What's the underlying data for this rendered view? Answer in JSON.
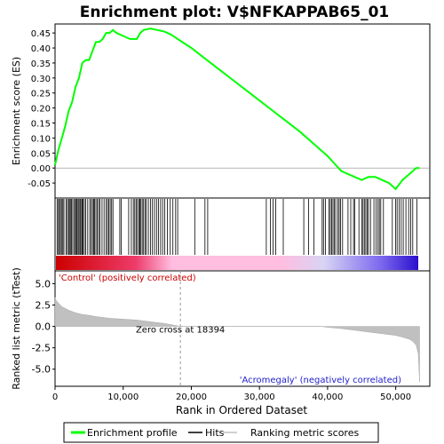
{
  "chart_data": {
    "type": "line",
    "title": "Enrichment plot: V$NFKAPPAB65_01",
    "es_panel": {
      "ylabel": "Enrichment score (ES)",
      "ylim": [
        -0.1,
        0.48
      ],
      "yticks": [
        "0.45",
        "0.40",
        "0.35",
        "0.30",
        "0.25",
        "0.20",
        "0.15",
        "0.10",
        "0.05",
        "0.00",
        "-0.05"
      ],
      "ytick_values": [
        0.45,
        0.4,
        0.35,
        0.3,
        0.25,
        0.2,
        0.15,
        0.1,
        0.05,
        0.0,
        -0.05
      ],
      "series": [
        {
          "name": "Enrichment profile",
          "color": "#00ff00",
          "x": [
            0,
            500,
            1000,
            1500,
            2000,
            2500,
            3000,
            3500,
            4000,
            4500,
            5000,
            5500,
            6000,
            6500,
            7000,
            7500,
            8000,
            8500,
            9000,
            10000,
            11000,
            12000,
            12500,
            13000,
            14000,
            15000,
            16000,
            17000,
            18000,
            19000,
            20000,
            22000,
            24000,
            26000,
            28000,
            30000,
            32000,
            34000,
            36000,
            38000,
            40000,
            42000,
            43000,
            44000,
            45000,
            46000,
            47000,
            48000,
            49000,
            50000,
            51000,
            52000,
            53000,
            53500
          ],
          "y": [
            0.01,
            0.06,
            0.1,
            0.14,
            0.19,
            0.22,
            0.27,
            0.3,
            0.35,
            0.36,
            0.36,
            0.39,
            0.42,
            0.42,
            0.43,
            0.45,
            0.45,
            0.46,
            0.45,
            0.44,
            0.43,
            0.43,
            0.45,
            0.46,
            0.465,
            0.46,
            0.455,
            0.445,
            0.43,
            0.415,
            0.4,
            0.365,
            0.33,
            0.295,
            0.26,
            0.225,
            0.19,
            0.155,
            0.12,
            0.08,
            0.04,
            -0.01,
            -0.02,
            -0.03,
            -0.04,
            -0.03,
            -0.03,
            -0.04,
            -0.05,
            -0.07,
            -0.04,
            -0.02,
            0.0,
            0.0
          ]
        }
      ]
    },
    "rank_panel": {
      "xlabel": "Rank in Ordered Dataset",
      "ylabel": "Ranked list metric (tTest)",
      "xlim": [
        0,
        55000
      ],
      "xticks": [
        "0",
        "10,000",
        "20,000",
        "30,000",
        "40,000",
        "50,000"
      ],
      "xtick_values": [
        0,
        10000,
        20000,
        30000,
        40000,
        50000
      ],
      "ylim": [
        -7,
        6.5
      ],
      "yticks": [
        "5.0",
        "2.5",
        "0.0",
        "-2.5",
        "-5.0"
      ],
      "ytick_values": [
        5.0,
        2.5,
        0.0,
        -2.5,
        -5.0
      ],
      "zero_cross_label": "Zero cross at 18394",
      "zero_cross": 18394,
      "positive_label": "'Control' (positively correlated)",
      "negative_label": "'Acromegaly' (negatively correlated)",
      "metric_profile": {
        "x": [
          0,
          200,
          1000,
          2000,
          3000,
          4000,
          5000,
          6000,
          8000,
          10000,
          12000,
          14000,
          16000,
          17000,
          18394,
          20000,
          25000,
          30000,
          35000,
          39000,
          40000,
          42000,
          44000,
          46000,
          48000,
          50000,
          51000,
          52000,
          52500,
          53000,
          53300,
          53500
        ],
        "y": [
          3.4,
          3.0,
          2.3,
          1.9,
          1.6,
          1.4,
          1.3,
          1.15,
          0.95,
          0.85,
          0.75,
          0.55,
          0.35,
          0.22,
          0.0,
          0.0,
          0.0,
          0.0,
          0.0,
          0.0,
          -0.1,
          -0.25,
          -0.45,
          -0.65,
          -0.85,
          -1.05,
          -1.25,
          -1.5,
          -1.75,
          -2.2,
          -3.2,
          -6.5
        ]
      }
    },
    "hits": [
      300,
      500,
      650,
      800,
      1000,
      1150,
      1300,
      1600,
      1800,
      2000,
      2100,
      2250,
      2400,
      2600,
      2800,
      3000,
      3100,
      3250,
      3400,
      3550,
      3700,
      3900,
      4000,
      4100,
      4300,
      4500,
      4800,
      5100,
      5300,
      5500,
      5650,
      5800,
      6000,
      6200,
      6400,
      6600,
      6900,
      7200,
      7500,
      7700,
      7900,
      8100,
      8300,
      8500,
      9500,
      9700,
      10800,
      11200,
      11500,
      11700,
      11900,
      12100,
      12300,
      12450,
      12600,
      12800,
      13000,
      13200,
      13400,
      13700,
      14000,
      14300,
      14600,
      14900,
      15200,
      15500,
      15800,
      16100,
      16500,
      16900,
      17300,
      17700,
      18000,
      20500,
      22000,
      22400,
      31000,
      31600,
      32000,
      32400,
      33500,
      36500,
      37200,
      38000,
      39200,
      39400,
      39700,
      40200,
      40400,
      40600,
      40800,
      41000,
      41200,
      41500,
      41700,
      41900,
      42200,
      43000,
      43400,
      43800,
      44000,
      44600,
      45000,
      45200,
      45400,
      45600,
      45800,
      46000,
      46300,
      46800,
      47100,
      47400,
      47600,
      47800,
      48200,
      49500,
      50000,
      50200,
      50500,
      50800,
      51100,
      51500,
      51900,
      52200,
      52500,
      53100
    ]
  },
  "legend": {
    "items": [
      {
        "label": "Enrichment profile",
        "color": "#00ff00"
      },
      {
        "label": "Hits",
        "color": "#000000"
      },
      {
        "label": "Ranking metric scores",
        "color": "#c0c0c0"
      }
    ]
  }
}
